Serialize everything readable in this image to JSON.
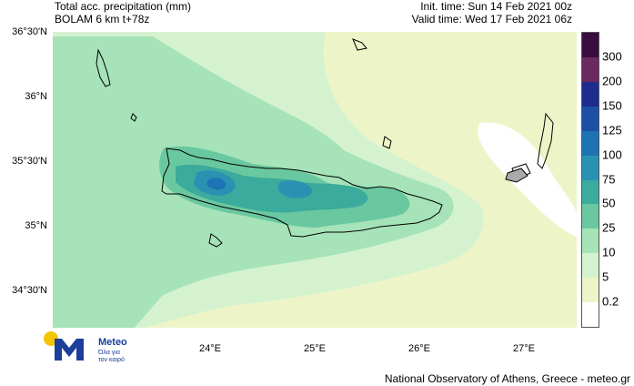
{
  "header": {
    "title_line1": "Total acc. precipitation (mm)",
    "title_line2": "BOLAM 6 km t+78z",
    "init_time": "Init. time: Sun 14 Feb 2021 00z",
    "valid_time": "Valid time: Wed 17 Feb 2021 06z"
  },
  "axes": {
    "lat_labels": [
      "36°30'N",
      "36°N",
      "35°30'N",
      "35°N",
      "34°30'N"
    ],
    "lon_labels": [
      "24°E",
      "25°E",
      "26°E",
      "27°E"
    ]
  },
  "colorbar": {
    "labels": [
      "300",
      "200",
      "150",
      "125",
      "100",
      "75",
      "50",
      "25",
      "10",
      "5",
      "0.2"
    ],
    "colors": [
      "#3a0d3f",
      "#6a2a60",
      "#1e2b8f",
      "#1c4fa6",
      "#1d73b3",
      "#2a91b3",
      "#3aab9c",
      "#6ac8a0",
      "#a6e3b8",
      "#d5f2cf",
      "#edf5c8",
      "#ffffff"
    ]
  },
  "map": {
    "background_color": "#edf5c8",
    "region_colors": [
      "#d5f2cf",
      "#a6e3b8",
      "#6ac8a0",
      "#3aab9c",
      "#2a91b3",
      "#1d73b3"
    ]
  },
  "logo": {
    "brand": "Meteo",
    "tagline1": "Όλα για",
    "tagline2": "τον καιρό"
  },
  "footer": {
    "credit": "National Observatory of Athens, Greece - meteo.gr"
  }
}
